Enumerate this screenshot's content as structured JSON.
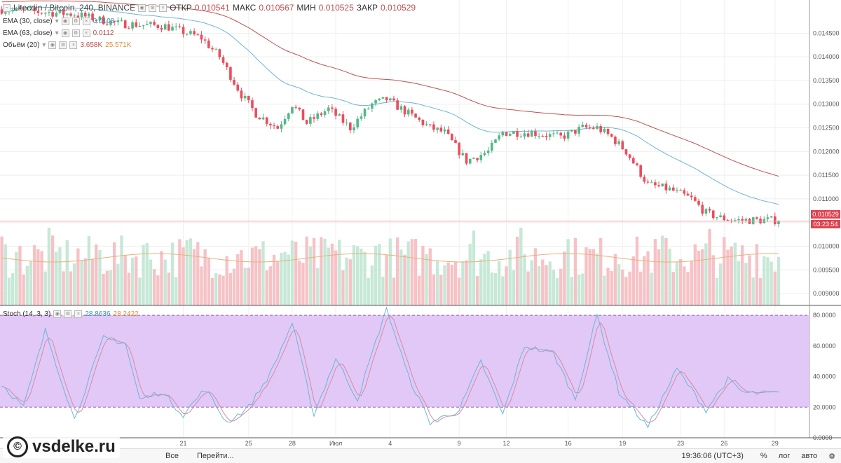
{
  "header": {
    "symbol": "Litecoin / Bitcoin, 240, BINANCE",
    "open_label": "ОТКР",
    "open_value": "0.010541",
    "high_label": "МАКС",
    "high_value": "0.010567",
    "low_label": "МИН",
    "low_value": "0.010525",
    "close_label": "ЗАКР",
    "close_value": "0.010529"
  },
  "indicators": {
    "ema30": {
      "label": "EMA (30, close)",
      "value": "0.0108"
    },
    "ema63": {
      "label": "EMA (63, close)",
      "value": "0.0112"
    },
    "volume": {
      "label": "Объём (20)",
      "value1": "3.658K",
      "value2": "25.571K"
    },
    "stoch": {
      "label": "Stoch (14, 3, 3)",
      "k": "28.8636",
      "d": "28.2422"
    }
  },
  "price_tags": {
    "last": "0.010529",
    "countdown": "03:23:54"
  },
  "bottom_bar": {
    "all": "Все",
    "goto": "Перейти...",
    "time": "19:36:06 (UTC+3)",
    "percent": "%",
    "log": "лог",
    "auto": "авто"
  },
  "watermark": {
    "text": "vsdelke.ru",
    "mark": "©"
  },
  "colors": {
    "up": "#53b987",
    "down": "#eb4d5c",
    "ema30": "#6bb6d6",
    "ema63": "#c0504d",
    "stoch_band": "#e1c8f7",
    "stoch_k": "#6bb6d6",
    "stoch_d": "#d98aa0"
  },
  "chart_data": [
    {
      "type": "candlestick",
      "title": "Litecoin / Bitcoin, 240, BINANCE",
      "ylim": [
        0.00875,
        0.0152
      ],
      "yticks": [
        "0.014500",
        "0.014000",
        "0.013500",
        "0.013000",
        "0.012500",
        "0.012000",
        "0.011500",
        "0.011000",
        "0.010500",
        "0.010000",
        "0.009500",
        "0.009000"
      ],
      "ytick_values": [
        0.0145,
        0.014,
        0.0135,
        0.013,
        0.0125,
        0.012,
        0.0115,
        0.011,
        0.0105,
        0.01,
        0.0095,
        0.009
      ],
      "xticks": [
        "21",
        "25",
        "28",
        "Июл",
        "4",
        "9",
        "12",
        "16",
        "19",
        "23",
        "26",
        "29"
      ],
      "xtick_index": [
        50,
        68,
        80,
        92,
        107,
        126,
        139,
        156,
        171,
        187,
        199,
        213
      ],
      "n_bars": 215,
      "close_anchors": [
        [
          0,
          0.015
        ],
        [
          20,
          0.0149
        ],
        [
          32,
          0.0147
        ],
        [
          45,
          0.01465
        ],
        [
          55,
          0.0144
        ],
        [
          60,
          0.014
        ],
        [
          66,
          0.0132
        ],
        [
          70,
          0.0128
        ],
        [
          76,
          0.0125
        ],
        [
          80,
          0.013
        ],
        [
          84,
          0.0126
        ],
        [
          90,
          0.0129
        ],
        [
          96,
          0.0125
        ],
        [
          102,
          0.013
        ],
        [
          106,
          0.0131
        ],
        [
          112,
          0.0128
        ],
        [
          118,
          0.0125
        ],
        [
          122,
          0.0124
        ],
        [
          128,
          0.0118
        ],
        [
          134,
          0.012
        ],
        [
          138,
          0.0124
        ],
        [
          146,
          0.0124
        ],
        [
          154,
          0.0123
        ],
        [
          160,
          0.0125
        ],
        [
          164,
          0.0125
        ],
        [
          168,
          0.0123
        ],
        [
          172,
          0.012
        ],
        [
          178,
          0.0113
        ],
        [
          184,
          0.0112
        ],
        [
          190,
          0.011
        ],
        [
          194,
          0.0107
        ],
        [
          198,
          0.0106
        ],
        [
          202,
          0.01055
        ]
      ],
      "series": [
        {
          "name": "EMA (30, close)",
          "last": 0.0108
        },
        {
          "name": "EMA (63, close)",
          "last": 0.0112
        },
        {
          "name": "Объём (20)",
          "last": 3658,
          "ma": 25571
        }
      ],
      "last_price": 0.010529
    },
    {
      "type": "line",
      "title": "Stoch (14, 3, 3)",
      "ylim": [
        0,
        86
      ],
      "yticks": [
        "80.0000",
        "60.0000",
        "40.0000",
        "20.0000",
        "0.0000"
      ],
      "ytick_values": [
        80,
        60,
        40,
        20,
        0
      ],
      "band": [
        20,
        80
      ],
      "k_anchors": [
        [
          0,
          35
        ],
        [
          6,
          20
        ],
        [
          12,
          70
        ],
        [
          20,
          12
        ],
        [
          28,
          65
        ],
        [
          34,
          62
        ],
        [
          38,
          25
        ],
        [
          44,
          30
        ],
        [
          50,
          15
        ],
        [
          56,
          32
        ],
        [
          62,
          10
        ],
        [
          68,
          20
        ],
        [
          74,
          42
        ],
        [
          80,
          75
        ],
        [
          86,
          15
        ],
        [
          92,
          52
        ],
        [
          98,
          25
        ],
        [
          106,
          85
        ],
        [
          112,
          40
        ],
        [
          118,
          10
        ],
        [
          126,
          18
        ],
        [
          132,
          50
        ],
        [
          138,
          15
        ],
        [
          144,
          60
        ],
        [
          152,
          55
        ],
        [
          158,
          25
        ],
        [
          164,
          80
        ],
        [
          170,
          30
        ],
        [
          178,
          7
        ],
        [
          186,
          45
        ],
        [
          194,
          18
        ],
        [
          200,
          38
        ],
        [
          204,
          30
        ],
        [
          206,
          29
        ]
      ],
      "series": [
        {
          "name": "%K",
          "last": 28.8636
        },
        {
          "name": "%D",
          "last": 28.2422
        }
      ]
    }
  ]
}
